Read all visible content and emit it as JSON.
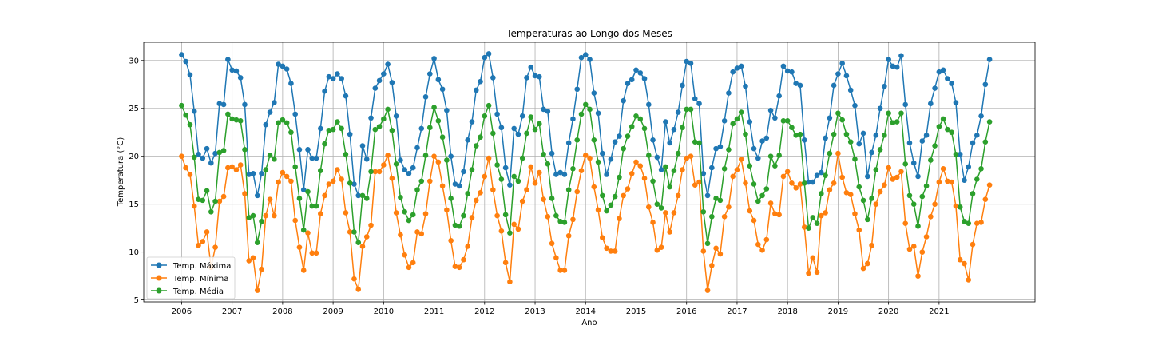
{
  "chart_data": {
    "type": "line",
    "title": "Temperaturas ao Longo dos Meses",
    "xlabel": "Ano",
    "ylabel": "Temperatura (°C)",
    "xlim": [
      2005.25,
      2022.9
    ],
    "ylim": [
      4.8,
      31.9
    ],
    "xticks": [
      2006,
      2007,
      2008,
      2009,
      2010,
      2011,
      2012,
      2013,
      2014,
      2015,
      2016,
      2017,
      2018,
      2019,
      2020,
      2021
    ],
    "yticks": [
      5,
      10,
      15,
      20,
      25,
      30
    ],
    "grid": true,
    "legend_position": "lower-left",
    "start_year": 2006,
    "months_per_year": 12,
    "series": [
      {
        "name": "Temp. Máxima",
        "color": "#1f77b4",
        "values": [
          30.6,
          29.9,
          28.5,
          24.7,
          20.2,
          19.8,
          20.8,
          19.3,
          20.3,
          25.5,
          25.4,
          30.1,
          29.0,
          28.9,
          28.2,
          25.4,
          18.1,
          18.2,
          15.9,
          18.2,
          23.3,
          24.6,
          25.6,
          29.6,
          29.4,
          29.1,
          27.6,
          24.4,
          20.7,
          16.5,
          20.7,
          19.8,
          19.8,
          22.9,
          26.8,
          28.3,
          28.1,
          28.6,
          28.1,
          26.3,
          22.3,
          17.1,
          15.9,
          21.1,
          19.7,
          24.0,
          27.1,
          27.9,
          28.6,
          29.6,
          27.7,
          24.2,
          19.6,
          18.6,
          18.2,
          18.8,
          20.9,
          22.9,
          26.2,
          28.6,
          30.2,
          28.0,
          27.0,
          24.8,
          20.0,
          17.1,
          16.9,
          18.4,
          21.7,
          23.6,
          26.9,
          27.8,
          30.3,
          30.7,
          28.2,
          24.4,
          23.0,
          18.8,
          17.0,
          22.9,
          22.3,
          24.2,
          28.2,
          29.3,
          28.4,
          28.3,
          24.9,
          24.7,
          20.3,
          18.1,
          18.3,
          18.1,
          21.4,
          23.9,
          27.0,
          30.3,
          30.6,
          30.1,
          26.6,
          24.5,
          20.3,
          18.1,
          19.7,
          21.5,
          22.1,
          25.8,
          27.6,
          28.0,
          29.0,
          28.7,
          28.1,
          25.4,
          21.7,
          19.9,
          18.6,
          23.6,
          21.4,
          22.8,
          24.6,
          27.4,
          29.9,
          29.7,
          26.0,
          25.5,
          18.2,
          15.9,
          18.8,
          20.8,
          21.0,
          23.7,
          26.6,
          28.8,
          29.2,
          29.4,
          27.3,
          23.6,
          20.8,
          19.8,
          21.6,
          21.9,
          24.8,
          24.0,
          26.3,
          29.4,
          28.9,
          28.8,
          27.6,
          27.4,
          21.7,
          17.3,
          17.3,
          18.0,
          18.3,
          21.9,
          24.0,
          27.4,
          28.6,
          29.7,
          28.4,
          26.9,
          25.3,
          21.3,
          22.4,
          17.9,
          20.4,
          22.2,
          25.0,
          27.3,
          30.1,
          29.4,
          29.3,
          30.5,
          25.4,
          21.4,
          19.3,
          17.9,
          21.6,
          22.2,
          25.5,
          27.1,
          28.8,
          29.0,
          28.1,
          27.6,
          25.6,
          20.2,
          17.5,
          18.9,
          21.4,
          22.2,
          24.2,
          27.5,
          30.1
        ]
      },
      {
        "name": "Temp. Mínima",
        "color": "#ff7f0e",
        "values": [
          20.0,
          18.8,
          18.1,
          14.8,
          10.7,
          11.1,
          12.1,
          8.4,
          10.5,
          15.3,
          15.8,
          18.8,
          18.9,
          18.6,
          19.1,
          16.1,
          9.1,
          9.4,
          6.0,
          8.2,
          13.8,
          15.5,
          13.8,
          17.3,
          18.3,
          17.9,
          17.4,
          13.3,
          10.5,
          8.1,
          12.0,
          9.9,
          9.9,
          14.0,
          15.9,
          17.1,
          17.4,
          18.6,
          17.6,
          14.1,
          12.1,
          7.2,
          6.1,
          10.6,
          11.6,
          12.8,
          18.4,
          18.4,
          19.1,
          20.1,
          17.7,
          14.1,
          11.8,
          9.7,
          8.4,
          8.9,
          12.1,
          11.9,
          14.0,
          17.4,
          20.0,
          19.4,
          16.9,
          14.4,
          11.2,
          8.5,
          8.4,
          9.2,
          10.6,
          13.6,
          15.4,
          16.2,
          17.9,
          19.8,
          16.5,
          13.8,
          12.2,
          8.9,
          6.9,
          12.9,
          12.4,
          15.3,
          16.5,
          18.9,
          17.2,
          18.3,
          15.5,
          13.7,
          10.9,
          9.4,
          8.1,
          8.1,
          11.7,
          13.4,
          16.3,
          18.5,
          20.1,
          19.8,
          16.8,
          14.4,
          11.5,
          10.4,
          10.1,
          10.1,
          13.5,
          15.9,
          16.6,
          18.2,
          19.4,
          19.0,
          17.7,
          14.7,
          13.1,
          10.2,
          10.5,
          14.1,
          12.1,
          14.1,
          15.9,
          18.6,
          19.8,
          20.0,
          17.0,
          17.3,
          10.1,
          6.0,
          8.6,
          10.4,
          9.8,
          13.7,
          14.7,
          17.9,
          18.6,
          19.7,
          17.2,
          14.3,
          13.3,
          10.8,
          10.2,
          11.3,
          15.1,
          14.0,
          13.9,
          17.9,
          18.4,
          17.2,
          16.7,
          17.1,
          12.6,
          7.8,
          9.4,
          7.9,
          13.8,
          14.1,
          16.5,
          17.2,
          20.3,
          17.8,
          16.2,
          16.0,
          14.0,
          12.3,
          8.3,
          8.8,
          10.7,
          15.0,
          16.3,
          17.0,
          18.8,
          17.6,
          17.8,
          18.4,
          13.0,
          10.3,
          10.6,
          7.5,
          10.0,
          11.6,
          13.7,
          15.0,
          17.3,
          18.7,
          17.4,
          17.3,
          14.8,
          9.2,
          8.8,
          7.1,
          10.8,
          13.0,
          13.1,
          15.5,
          17.0
        ]
      },
      {
        "name": "Temp. Média",
        "color": "#2ca02c",
        "values": [
          25.3,
          24.3,
          23.3,
          19.9,
          15.5,
          15.4,
          16.4,
          14.2,
          15.3,
          20.4,
          20.6,
          24.4,
          23.9,
          23.8,
          23.7,
          20.7,
          13.6,
          13.8,
          11.0,
          13.2,
          18.6,
          20.1,
          19.7,
          23.5,
          23.8,
          23.5,
          22.5,
          18.9,
          15.6,
          12.3,
          16.3,
          14.8,
          14.8,
          18.5,
          21.3,
          22.7,
          22.8,
          23.6,
          22.9,
          20.2,
          17.2,
          12.1,
          11.0,
          15.9,
          15.6,
          18.4,
          22.8,
          23.1,
          23.9,
          24.9,
          22.7,
          19.2,
          15.7,
          14.2,
          13.3,
          13.9,
          16.5,
          17.4,
          20.1,
          23.0,
          25.1,
          23.7,
          22.0,
          19.6,
          15.6,
          12.8,
          12.7,
          13.8,
          16.1,
          18.6,
          21.1,
          22.0,
          24.2,
          25.3,
          22.4,
          19.1,
          17.6,
          13.9,
          12.0,
          17.9,
          17.4,
          19.8,
          22.4,
          24.1,
          22.8,
          23.4,
          20.2,
          19.2,
          15.6,
          13.8,
          13.2,
          13.1,
          16.5,
          18.7,
          21.7,
          24.4,
          25.4,
          24.9,
          21.7,
          19.4,
          15.9,
          14.3,
          14.9,
          15.8,
          17.8,
          20.8,
          22.1,
          23.1,
          24.2,
          23.9,
          22.9,
          20.1,
          17.4,
          15.0,
          14.6,
          18.9,
          16.8,
          18.5,
          20.3,
          23.0,
          24.9,
          24.9,
          21.5,
          21.4,
          14.2,
          10.9,
          13.7,
          15.6,
          15.4,
          18.7,
          20.7,
          23.4,
          23.9,
          24.6,
          22.3,
          19.0,
          17.1,
          15.3,
          15.9,
          16.6,
          20.0,
          19.0,
          20.1,
          23.7,
          23.7,
          23.0,
          22.2,
          22.3,
          17.2,
          12.5,
          13.6,
          13.0,
          16.1,
          18.0,
          20.3,
          22.3,
          24.5,
          23.8,
          22.3,
          21.5,
          19.7,
          16.8,
          15.4,
          13.4,
          15.6,
          18.6,
          20.7,
          22.2,
          24.5,
          23.5,
          23.6,
          24.5,
          19.2,
          15.9,
          15.0,
          12.7,
          15.8,
          16.9,
          19.6,
          21.1,
          23.1,
          23.9,
          22.8,
          22.5,
          20.2,
          14.7,
          13.2,
          13.0,
          16.1,
          17.6,
          18.7,
          21.5,
          23.6
        ]
      }
    ]
  }
}
